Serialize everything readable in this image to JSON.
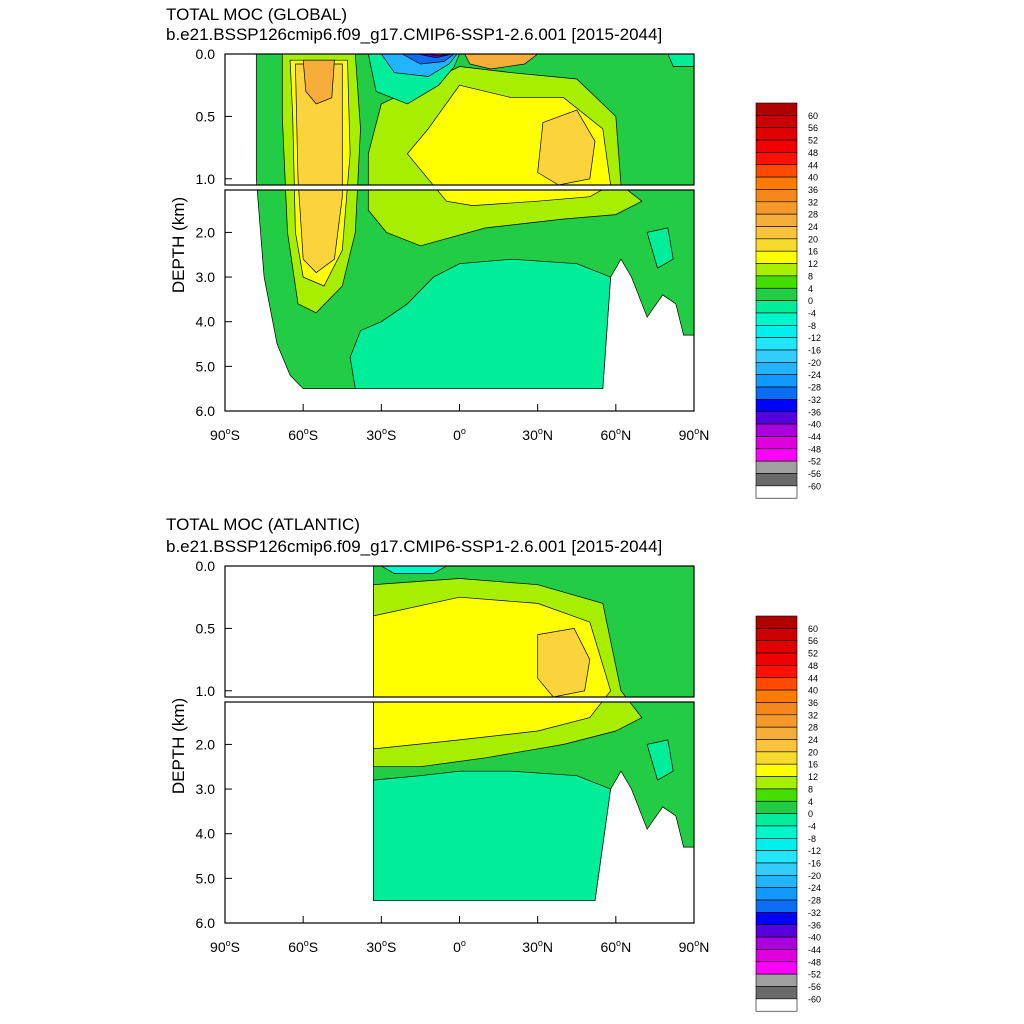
{
  "chart_data": [
    {
      "type": "heatmap",
      "title": "TOTAL MOC (GLOBAL)",
      "subtitle": "b.e21.BSSP126cmip6.f09_g17.CMIP6-SSP1-2.6.001 [2015-2044]",
      "ylabel": "DEPTH (km)",
      "xlabel": "",
      "xlim": [
        -90,
        90
      ],
      "upper_ylim": [
        0.0,
        1.05
      ],
      "lower_ylim": [
        1.05,
        6.0
      ],
      "upper_yticks": [
        "0.0",
        "0.5",
        "1.0"
      ],
      "lower_yticks": [
        "2.0",
        "3.0",
        "4.0",
        "5.0",
        "6.0"
      ],
      "xticks": [
        {
          "base": "90",
          "deg": "o",
          "hemi": "S"
        },
        {
          "base": "60",
          "deg": "o",
          "hemi": "S"
        },
        {
          "base": "30",
          "deg": "o",
          "hemi": "S"
        },
        {
          "base": "0",
          "deg": "o",
          "hemi": ""
        },
        {
          "base": "30",
          "deg": "o",
          "hemi": "N"
        },
        {
          "base": "60",
          "deg": "o",
          "hemi": "N"
        },
        {
          "base": "90",
          "deg": "o",
          "hemi": "N"
        }
      ],
      "regions": [
        {
          "name": "deep_cell_0_to_-4",
          "value": -2,
          "lat": [
            -30,
            55
          ],
          "depth": [
            2.6,
            5.5
          ]
        },
        {
          "name": "southern_ocean_cell_8_to_20",
          "value": 18,
          "lat": [
            -65,
            -40
          ],
          "depth": [
            0.0,
            3.0
          ]
        },
        {
          "name": "southern_ocean_core_24_to_32",
          "value": 30,
          "lat": [
            -60,
            -48
          ],
          "depth": [
            0.05,
            0.4
          ]
        },
        {
          "name": "tropical_south_min_-32_to_-60",
          "value": -40,
          "lat": [
            -20,
            -2
          ],
          "depth": [
            0.0,
            0.15
          ]
        },
        {
          "name": "amoc_upper_cell_16_to_20",
          "value": 18,
          "lat": [
            0,
            55
          ],
          "depth": [
            0.2,
            1.05
          ]
        },
        {
          "name": "amoc_core_20_to_24",
          "value": 22,
          "lat": [
            30,
            50
          ],
          "depth": [
            0.4,
            1.0
          ]
        },
        {
          "name": "north_tropical_max_24_to_28",
          "value": 26,
          "lat": [
            5,
            25
          ],
          "depth": [
            0.0,
            0.08
          ]
        }
      ]
    },
    {
      "type": "heatmap",
      "title": "TOTAL MOC (ATLANTIC)",
      "subtitle": "b.e21.BSSP126cmip6.f09_g17.CMIP6-SSP1-2.6.001 [2015-2044]",
      "ylabel": "DEPTH (km)",
      "xlabel": "",
      "xlim": [
        -90,
        90
      ],
      "upper_ylim": [
        0.0,
        1.05
      ],
      "lower_ylim": [
        1.05,
        6.0
      ],
      "upper_yticks": [
        "0.0",
        "0.5",
        "1.0"
      ],
      "lower_yticks": [
        "2.0",
        "3.0",
        "4.0",
        "5.0",
        "6.0"
      ],
      "xticks": [
        {
          "base": "90",
          "deg": "o",
          "hemi": "S"
        },
        {
          "base": "60",
          "deg": "o",
          "hemi": "S"
        },
        {
          "base": "30",
          "deg": "o",
          "hemi": "S"
        },
        {
          "base": "0",
          "deg": "o",
          "hemi": ""
        },
        {
          "base": "30",
          "deg": "o",
          "hemi": "N"
        },
        {
          "base": "60",
          "deg": "o",
          "hemi": "N"
        },
        {
          "base": "90",
          "deg": "o",
          "hemi": "N"
        }
      ],
      "regions": [
        {
          "name": "deep_cell_0_to_-4",
          "value": -2,
          "lat": [
            -33,
            55
          ],
          "depth": [
            2.7,
            5.5
          ]
        },
        {
          "name": "amoc_upper_cell_16_to_20",
          "value": 18,
          "lat": [
            -33,
            55
          ],
          "depth": [
            0.15,
            1.6
          ]
        },
        {
          "name": "amoc_core_20_to_24",
          "value": 22,
          "lat": [
            30,
            50
          ],
          "depth": [
            0.5,
            1.0
          ]
        },
        {
          "name": "surface_south_-4_to_-8",
          "value": -6,
          "lat": [
            -30,
            -5
          ],
          "depth": [
            0.0,
            0.05
          ]
        }
      ]
    }
  ],
  "colorbar": {
    "labels": [
      "60",
      "56",
      "52",
      "48",
      "44",
      "40",
      "36",
      "32",
      "28",
      "24",
      "20",
      "16",
      "12",
      "8",
      "4",
      "0",
      "-4",
      "-8",
      "-12",
      "-16",
      "-20",
      "-24",
      "-28",
      "-32",
      "-36",
      "-40",
      "-44",
      "-48",
      "-52",
      "-56",
      "-60"
    ],
    "colors": [
      "#b00000",
      "#cc0000",
      "#e00000",
      "#f20000",
      "#ff1000",
      "#ff4a00",
      "#ff7a00",
      "#f5861a",
      "#f59a2a",
      "#f7ad3a",
      "#fbc23c",
      "#f6da2c",
      "#ffff00",
      "#a8ee00",
      "#44dd00",
      "#22cc44",
      "#00ee99",
      "#00f7cc",
      "#00f0ee",
      "#22e6ff",
      "#33ccff",
      "#22b4ff",
      "#1199ff",
      "#0a6ef5",
      "#0000ff",
      "#5500dd",
      "#aa00dd",
      "#dd00dd",
      "#ff00ff",
      "#a0a0a0",
      "#6a6a6a",
      "#ffffff"
    ]
  }
}
